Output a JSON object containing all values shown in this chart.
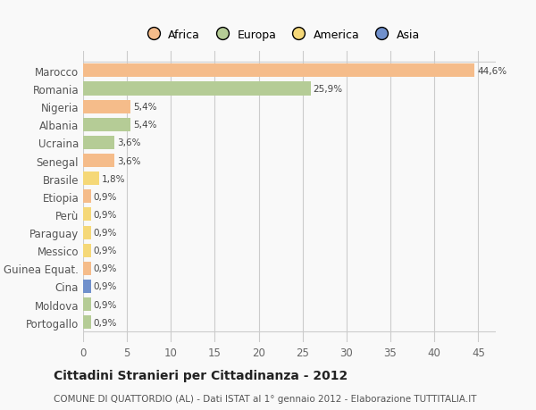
{
  "countries": [
    "Marocco",
    "Romania",
    "Nigeria",
    "Albania",
    "Ucraina",
    "Senegal",
    "Brasile",
    "Etiopia",
    "Perù",
    "Paraguay",
    "Messico",
    "Guinea Equat.",
    "Cina",
    "Moldova",
    "Portogallo"
  ],
  "values": [
    44.6,
    25.9,
    5.4,
    5.4,
    3.6,
    3.6,
    1.8,
    0.9,
    0.9,
    0.9,
    0.9,
    0.9,
    0.9,
    0.9,
    0.9
  ],
  "labels": [
    "44,6%",
    "25,9%",
    "5,4%",
    "5,4%",
    "3,6%",
    "3,6%",
    "1,8%",
    "0,9%",
    "0,9%",
    "0,9%",
    "0,9%",
    "0,9%",
    "0,9%",
    "0,9%",
    "0,9%"
  ],
  "colors": [
    "#f5bc8a",
    "#b5cc96",
    "#f5bc8a",
    "#b5cc96",
    "#b5cc96",
    "#f5bc8a",
    "#f5d878",
    "#f5bc8a",
    "#f5d878",
    "#f5d878",
    "#f5d878",
    "#f5bc8a",
    "#7090cc",
    "#b5cc96",
    "#b5cc96"
  ],
  "legend_labels": [
    "Africa",
    "Europa",
    "America",
    "Asia"
  ],
  "legend_colors": [
    "#f5bc8a",
    "#b5cc96",
    "#f5d878",
    "#7090cc"
  ],
  "title": "Cittadini Stranieri per Cittadinanza - 2012",
  "subtitle": "COMUNE DI QUATTORDIO (AL) - Dati ISTAT al 1° gennaio 2012 - Elaborazione TUTTITALIA.IT",
  "xlim": [
    0,
    47
  ],
  "xticks": [
    0,
    5,
    10,
    15,
    20,
    25,
    30,
    35,
    40,
    45
  ],
  "bg_color": "#f9f9f9",
  "grid_color": "#cccccc"
}
